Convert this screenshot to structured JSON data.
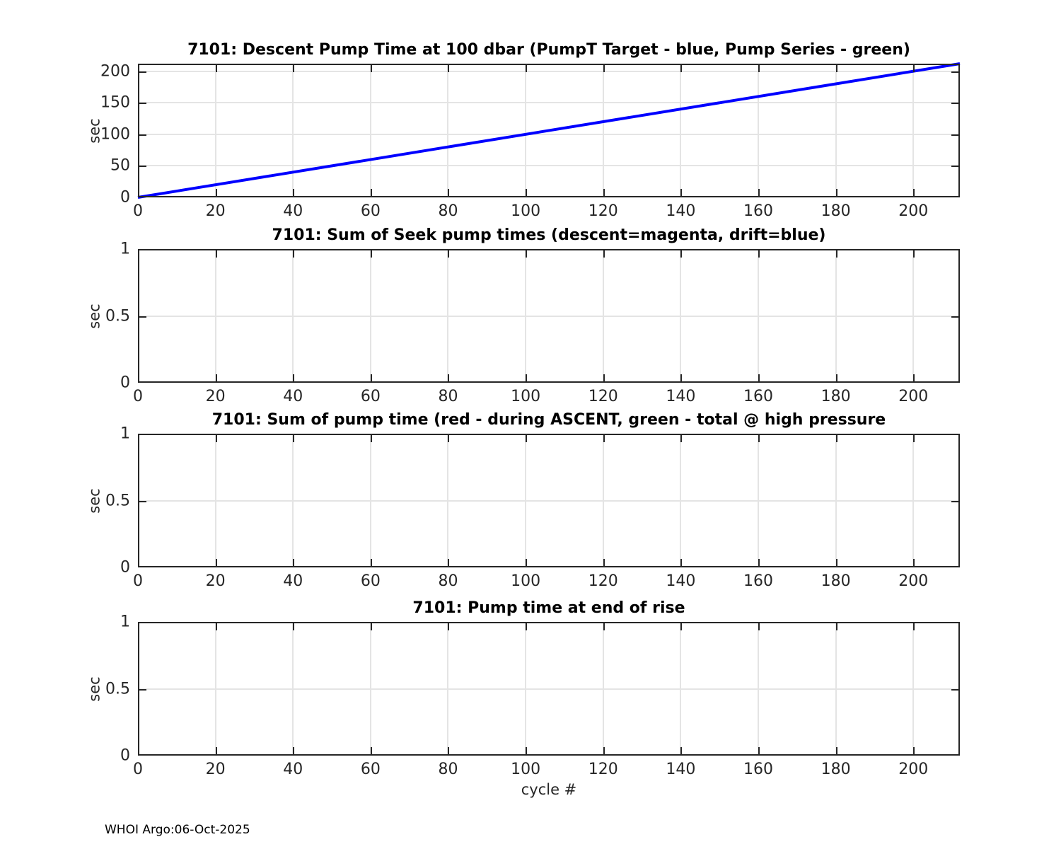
{
  "figure": {
    "footer": "WHOI Argo:06-Oct-2025",
    "background": "#ffffff",
    "axis_color": "#262626",
    "grid_color": "#e4e4e4",
    "title_color": "#000000"
  },
  "chart_data": [
    {
      "type": "line",
      "title": "7101: Descent Pump Time at 100 dbar (PumpT Target - blue, Pump Series - green)",
      "ylabel": "sec",
      "xlabel": "",
      "xlim": [
        0,
        212
      ],
      "ylim": [
        0,
        212
      ],
      "xticks": [
        0,
        20,
        40,
        60,
        80,
        100,
        120,
        140,
        160,
        180,
        200
      ],
      "xtick_labels": [
        "0",
        "20",
        "40",
        "60",
        "80",
        "100",
        "120",
        "140",
        "160",
        "180",
        "200"
      ],
      "yticks": [
        0,
        50,
        100,
        150,
        200
      ],
      "ytick_labels": [
        "0",
        "50",
        "100",
        "150",
        "200"
      ],
      "grid": true,
      "legend_note": "PumpT Target - blue, Pump Series - green",
      "series": [
        {
          "name": "PumpT Target",
          "color": "#0000ff",
          "line_width": 4,
          "x": [
            0,
            212
          ],
          "y": [
            0,
            212
          ]
        }
      ]
    },
    {
      "type": "line",
      "title": "7101: Sum of Seek pump times (descent=magenta, drift=blue)",
      "ylabel": "sec",
      "xlabel": "",
      "xlim": [
        0,
        212
      ],
      "ylim": [
        0,
        1
      ],
      "xticks": [
        0,
        20,
        40,
        60,
        80,
        100,
        120,
        140,
        160,
        180,
        200
      ],
      "xtick_labels": [
        "0",
        "20",
        "40",
        "60",
        "80",
        "100",
        "120",
        "140",
        "160",
        "180",
        "200"
      ],
      "yticks": [
        0,
        0.5,
        1
      ],
      "ytick_labels": [
        "0",
        "0.5",
        "1"
      ],
      "grid": true,
      "legend_note": "descent=magenta, drift=blue",
      "series": []
    },
    {
      "type": "line",
      "title": "7101: Sum of pump time (red - during ASCENT, green - total @ high pressure",
      "ylabel": "sec",
      "xlabel": "",
      "xlim": [
        0,
        212
      ],
      "ylim": [
        0,
        1
      ],
      "xticks": [
        0,
        20,
        40,
        60,
        80,
        100,
        120,
        140,
        160,
        180,
        200
      ],
      "xtick_labels": [
        "0",
        "20",
        "40",
        "60",
        "80",
        "100",
        "120",
        "140",
        "160",
        "180",
        "200"
      ],
      "yticks": [
        0,
        0.5,
        1
      ],
      "ytick_labels": [
        "0",
        "0.5",
        "1"
      ],
      "grid": true,
      "legend_note": "red - during ASCENT, green - total @ high pressure",
      "series": []
    },
    {
      "type": "line",
      "title": "7101: Pump time at end of rise",
      "ylabel": "sec",
      "xlabel": "cycle #",
      "xlim": [
        0,
        212
      ],
      "ylim": [
        0,
        1
      ],
      "xticks": [
        0,
        20,
        40,
        60,
        80,
        100,
        120,
        140,
        160,
        180,
        200
      ],
      "xtick_labels": [
        "0",
        "20",
        "40",
        "60",
        "80",
        "100",
        "120",
        "140",
        "160",
        "180",
        "200"
      ],
      "yticks": [
        0,
        0.5,
        1
      ],
      "ytick_labels": [
        "0",
        "0.5",
        "1"
      ],
      "grid": true,
      "legend_note": "",
      "series": []
    }
  ]
}
